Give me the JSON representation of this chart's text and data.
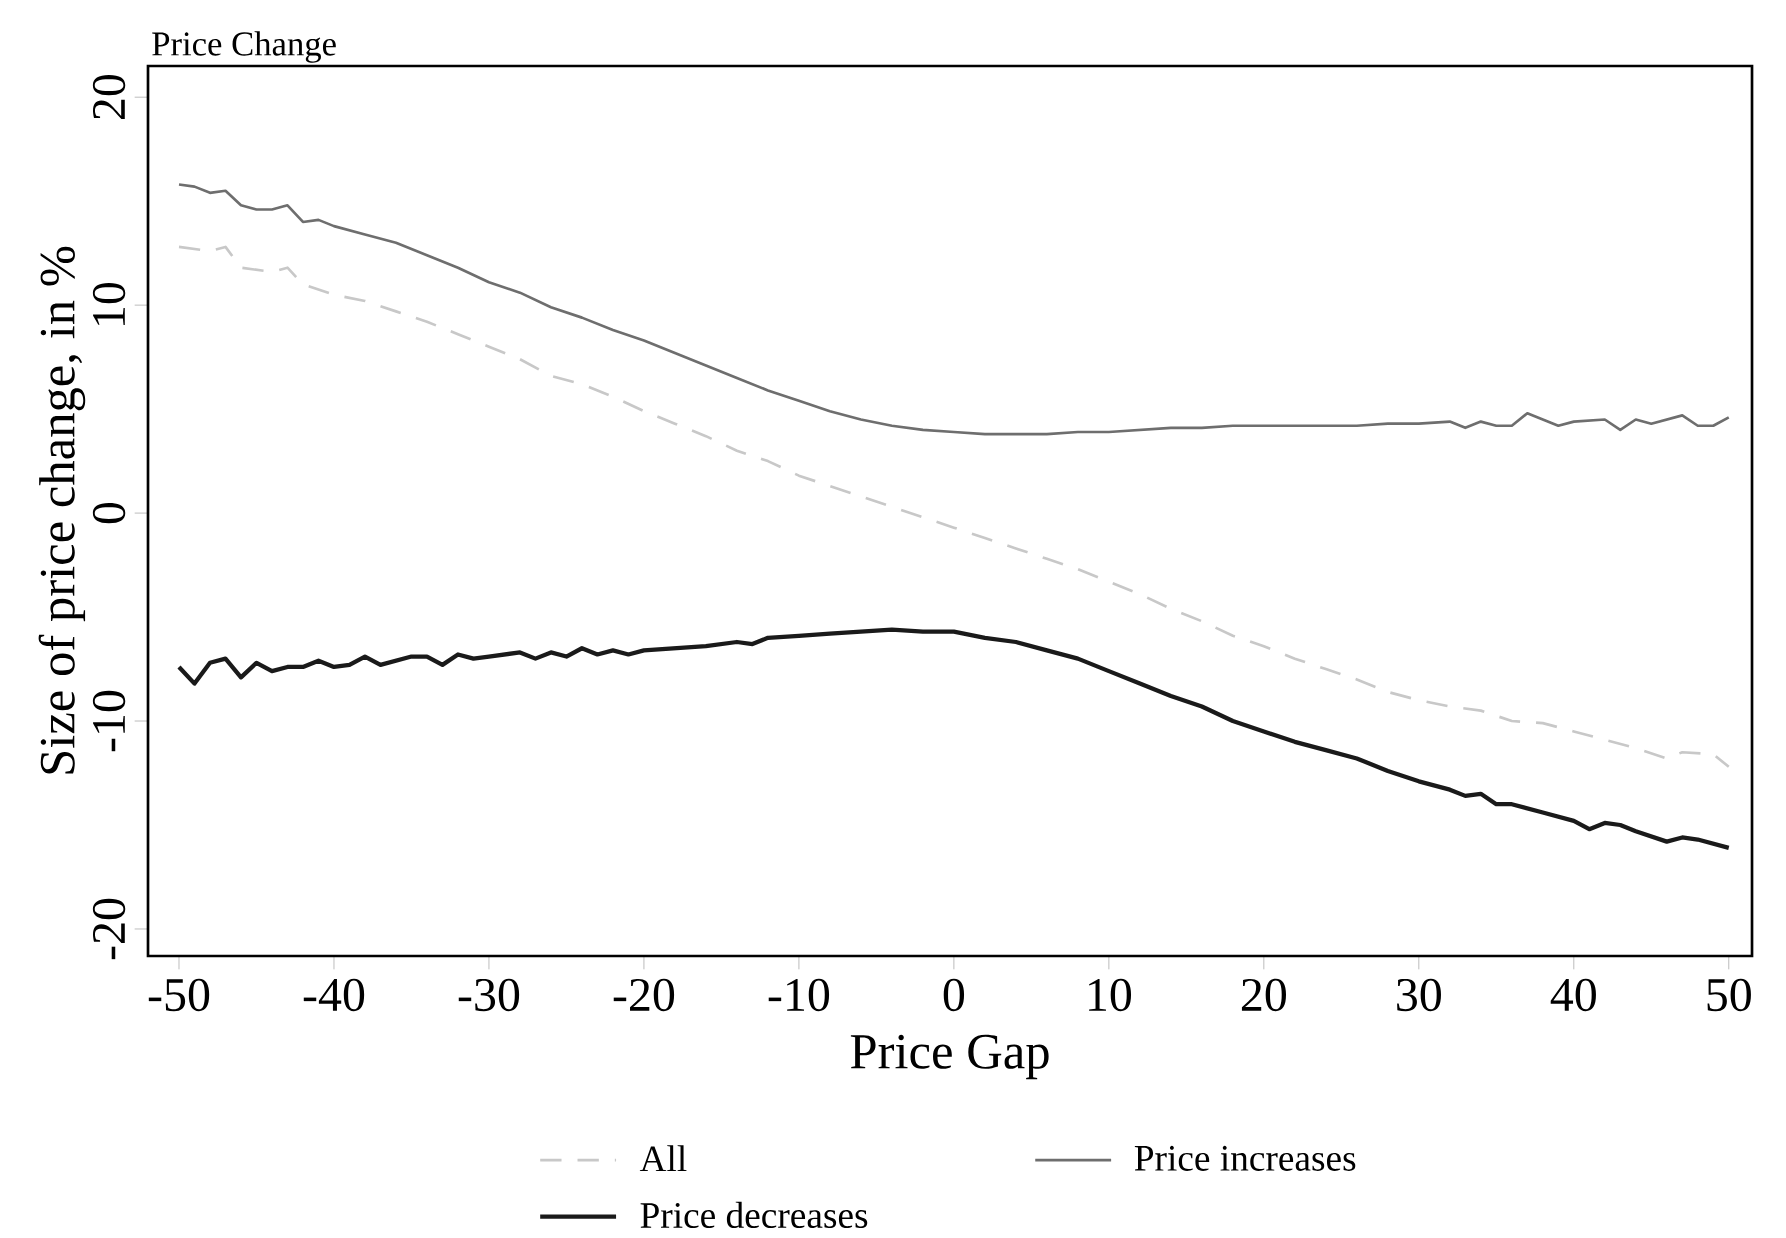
{
  "chart_data": {
    "type": "line",
    "title": "Price Change",
    "xlabel": "Price Gap",
    "ylabel": "Size of price change, in %",
    "xlim": [
      -52,
      51.5
    ],
    "ylim": [
      -21.3,
      21.5
    ],
    "xticks": [
      -50,
      -40,
      -30,
      -20,
      -10,
      0,
      10,
      20,
      30,
      40,
      50
    ],
    "yticks": [
      -20,
      -10,
      0,
      10,
      20
    ],
    "grid": false,
    "legend": "bottom",
    "marker": "none",
    "series": [
      {
        "name": "All",
        "color": "#c8c8c8",
        "line_style": "dashed",
        "x": [
          -50,
          -48,
          -47,
          -46,
          -44,
          -43,
          -42,
          -40,
          -38,
          -36,
          -34,
          -32,
          -30,
          -28,
          -26,
          -24,
          -22,
          -20,
          -18,
          -16,
          -14,
          -12,
          -10,
          -8,
          -6,
          -4,
          -2,
          0,
          2,
          4,
          6,
          8,
          10,
          12,
          14,
          16,
          18,
          20,
          22,
          24,
          26,
          28,
          30,
          32,
          34,
          36,
          38,
          40,
          42,
          44,
          46,
          47,
          49,
          50
        ],
        "values": [
          12.8,
          12.6,
          12.8,
          11.8,
          11.6,
          11.8,
          11.0,
          10.5,
          10.2,
          9.7,
          9.2,
          8.6,
          8.0,
          7.4,
          6.6,
          6.2,
          5.6,
          4.9,
          4.3,
          3.7,
          3.0,
          2.5,
          1.8,
          1.3,
          0.8,
          0.3,
          -0.2,
          -0.7,
          -1.2,
          -1.7,
          -2.2,
          -2.7,
          -3.3,
          -3.9,
          -4.6,
          -5.2,
          -5.9,
          -6.4,
          -7.0,
          -7.5,
          -8.0,
          -8.6,
          -9.0,
          -9.3,
          -9.5,
          -10.0,
          -10.1,
          -10.5,
          -10.9,
          -11.3,
          -11.8,
          -11.5,
          -11.6,
          -12.2
        ]
      },
      {
        "name": "Price increases",
        "color": "#6e6e6e",
        "line_style": "solid",
        "x": [
          -50,
          -49,
          -48,
          -47,
          -46,
          -45,
          -44,
          -43,
          -42,
          -41,
          -40,
          -38,
          -36,
          -34,
          -32,
          -30,
          -28,
          -26,
          -24,
          -22,
          -20,
          -18,
          -16,
          -14,
          -12,
          -10,
          -8,
          -6,
          -4,
          -2,
          0,
          2,
          4,
          6,
          8,
          10,
          12,
          14,
          16,
          18,
          20,
          22,
          24,
          26,
          28,
          30,
          32,
          33,
          34,
          35,
          36,
          37,
          39,
          40,
          42,
          43,
          44,
          45,
          47,
          48,
          49,
          50
        ],
        "values": [
          15.8,
          15.7,
          15.4,
          15.5,
          14.8,
          14.6,
          14.6,
          14.8,
          14.0,
          14.1,
          13.8,
          13.4,
          13.0,
          12.4,
          11.8,
          11.1,
          10.6,
          9.9,
          9.4,
          8.8,
          8.3,
          7.7,
          7.1,
          6.5,
          5.9,
          5.4,
          4.9,
          4.5,
          4.2,
          4.0,
          3.9,
          3.8,
          3.8,
          3.8,
          3.9,
          3.9,
          4.0,
          4.1,
          4.1,
          4.2,
          4.2,
          4.2,
          4.2,
          4.2,
          4.3,
          4.3,
          4.4,
          4.1,
          4.4,
          4.2,
          4.2,
          4.8,
          4.2,
          4.4,
          4.5,
          4.0,
          4.5,
          4.3,
          4.7,
          4.2,
          4.2,
          4.6
        ]
      },
      {
        "name": "Price decreases",
        "color": "#1a1a1a",
        "line_style": "solid",
        "x": [
          -50,
          -49,
          -48,
          -47,
          -46,
          -45,
          -44,
          -43,
          -42,
          -41,
          -40,
          -39,
          -38,
          -37,
          -36,
          -35,
          -34,
          -33,
          -32,
          -31,
          -30,
          -28,
          -27,
          -26,
          -25,
          -24,
          -23,
          -22,
          -21,
          -20,
          -18,
          -16,
          -14,
          -13,
          -12,
          -10,
          -8,
          -6,
          -4,
          -2,
          0,
          2,
          4,
          6,
          8,
          10,
          12,
          14,
          16,
          18,
          20,
          22,
          24,
          26,
          28,
          30,
          32,
          33,
          34,
          35,
          36,
          38,
          40,
          41,
          42,
          43,
          44,
          46,
          47,
          48,
          50
        ],
        "values": [
          -7.4,
          -8.2,
          -7.2,
          -7.0,
          -7.9,
          -7.2,
          -7.6,
          -7.4,
          -7.4,
          -7.1,
          -7.4,
          -7.3,
          -6.9,
          -7.3,
          -7.1,
          -6.9,
          -6.9,
          -7.3,
          -6.8,
          -7.0,
          -6.9,
          -6.7,
          -7.0,
          -6.7,
          -6.9,
          -6.5,
          -6.8,
          -6.6,
          -6.8,
          -6.6,
          -6.5,
          -6.4,
          -6.2,
          -6.3,
          -6.0,
          -5.9,
          -5.8,
          -5.7,
          -5.6,
          -5.7,
          -5.7,
          -6.0,
          -6.2,
          -6.6,
          -7.0,
          -7.6,
          -8.2,
          -8.8,
          -9.3,
          -10.0,
          -10.5,
          -11.0,
          -11.4,
          -11.8,
          -12.4,
          -12.9,
          -13.3,
          -13.6,
          -13.5,
          -14.0,
          -14.0,
          -14.4,
          -14.8,
          -15.2,
          -14.9,
          -15.0,
          -15.3,
          -15.8,
          -15.6,
          -15.7,
          -16.1
        ]
      }
    ]
  }
}
